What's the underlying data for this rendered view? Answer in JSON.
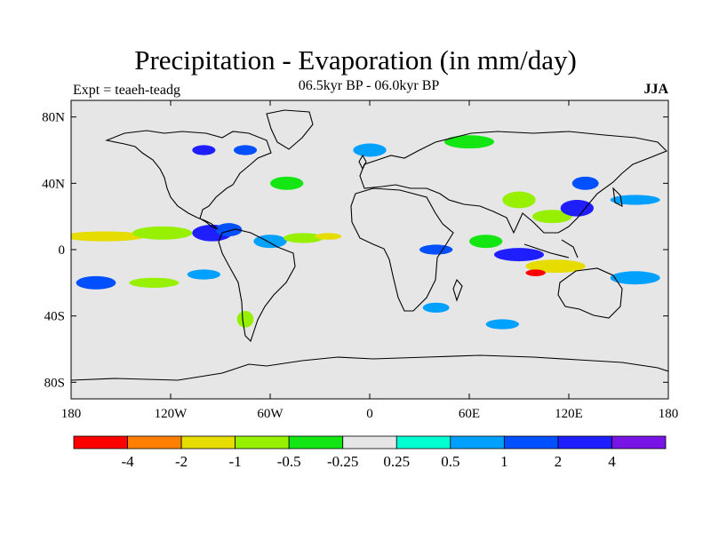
{
  "header": {
    "title": "Precipitation - Evaporation (in mm/day)",
    "subtitle": "06.5kyr BP - 06.0kyr BP",
    "experiment": "Expt = teaeh-teadg",
    "season": "JJA"
  },
  "chart_data": {
    "type": "heatmap",
    "projection": "cylindrical-equidistant",
    "title": "Precipitation - Evaporation (in mm/day)",
    "lon_range": [
      -180,
      180
    ],
    "lat_range": [
      -90,
      90
    ],
    "x_ticks": [
      {
        "lon": -180,
        "label": "180"
      },
      {
        "lon": -120,
        "label": "120W"
      },
      {
        "lon": -60,
        "label": "60W"
      },
      {
        "lon": 0,
        "label": "0"
      },
      {
        "lon": 60,
        "label": "60E"
      },
      {
        "lon": 120,
        "label": "120E"
      },
      {
        "lon": 180,
        "label": "180"
      }
    ],
    "y_ticks": [
      {
        "lat": 80,
        "label": "80N"
      },
      {
        "lat": 40,
        "label": "40N"
      },
      {
        "lat": 0,
        "label": "0"
      },
      {
        "lat": -40,
        "label": "40S"
      },
      {
        "lat": -80,
        "label": "80S"
      }
    ],
    "colorbar": {
      "bins": [
        {
          "color": "#ff0000"
        },
        {
          "color": "#ff8000"
        },
        {
          "color": "#e6dc00"
        },
        {
          "color": "#96f000"
        },
        {
          "color": "#14e614"
        },
        {
          "color": "#e6e6e6"
        },
        {
          "color": "#00ffd2"
        },
        {
          "color": "#00a0ff"
        },
        {
          "color": "#0050ff"
        },
        {
          "color": "#1e1eff"
        },
        {
          "color": "#7814e6"
        }
      ],
      "labels": [
        "-4",
        "-2",
        "-1",
        "-0.5",
        "-0.25",
        "0.25",
        "0.5",
        "1",
        "2",
        "4"
      ]
    },
    "anomaly_regions": [
      {
        "lon": -160,
        "lat": 8,
        "rx": 25,
        "ry": 3,
        "bin": 2
      },
      {
        "lon": -125,
        "lat": 10,
        "rx": 18,
        "ry": 4,
        "bin": 3
      },
      {
        "lon": -95,
        "lat": 10,
        "rx": 12,
        "ry": 5,
        "bin": 9
      },
      {
        "lon": -85,
        "lat": 12,
        "rx": 8,
        "ry": 4,
        "bin": 8
      },
      {
        "lon": -60,
        "lat": 5,
        "rx": 10,
        "ry": 4,
        "bin": 7
      },
      {
        "lon": -40,
        "lat": 7,
        "rx": 12,
        "ry": 3,
        "bin": 3
      },
      {
        "lon": -25,
        "lat": 8,
        "rx": 8,
        "ry": 2,
        "bin": 2
      },
      {
        "lon": 40,
        "lat": 0,
        "rx": 10,
        "ry": 3,
        "bin": 8
      },
      {
        "lon": 70,
        "lat": 5,
        "rx": 10,
        "ry": 4,
        "bin": 4
      },
      {
        "lon": 90,
        "lat": -3,
        "rx": 15,
        "ry": 4,
        "bin": 9
      },
      {
        "lon": 112,
        "lat": -10,
        "rx": 18,
        "ry": 4,
        "bin": 2
      },
      {
        "lon": 100,
        "lat": -14,
        "rx": 6,
        "ry": 2,
        "bin": 0
      },
      {
        "lon": 110,
        "lat": 20,
        "rx": 12,
        "ry": 4,
        "bin": 3
      },
      {
        "lon": 125,
        "lat": 25,
        "rx": 10,
        "ry": 5,
        "bin": 9
      },
      {
        "lon": 130,
        "lat": 40,
        "rx": 8,
        "ry": 4,
        "bin": 8
      },
      {
        "lon": 160,
        "lat": 30,
        "rx": 15,
        "ry": 3,
        "bin": 7
      },
      {
        "lon": 160,
        "lat": -17,
        "rx": 15,
        "ry": 4,
        "bin": 7
      },
      {
        "lon": -165,
        "lat": -20,
        "rx": 12,
        "ry": 4,
        "bin": 8
      },
      {
        "lon": -130,
        "lat": -20,
        "rx": 15,
        "ry": 3,
        "bin": 3
      },
      {
        "lon": -100,
        "lat": -15,
        "rx": 10,
        "ry": 3,
        "bin": 7
      },
      {
        "lon": -75,
        "lat": -42,
        "rx": 5,
        "ry": 5,
        "bin": 3
      },
      {
        "lon": -100,
        "lat": 60,
        "rx": 7,
        "ry": 3,
        "bin": 9
      },
      {
        "lon": -75,
        "lat": 60,
        "rx": 7,
        "ry": 3,
        "bin": 8
      },
      {
        "lon": -50,
        "lat": 40,
        "rx": 10,
        "ry": 4,
        "bin": 4
      },
      {
        "lon": 0,
        "lat": 60,
        "rx": 10,
        "ry": 4,
        "bin": 7
      },
      {
        "lon": 60,
        "lat": 65,
        "rx": 15,
        "ry": 4,
        "bin": 4
      },
      {
        "lon": 90,
        "lat": 30,
        "rx": 10,
        "ry": 5,
        "bin": 3
      },
      {
        "lon": 80,
        "lat": -45,
        "rx": 10,
        "ry": 3,
        "bin": 7
      },
      {
        "lon": 40,
        "lat": -35,
        "rx": 8,
        "ry": 3,
        "bin": 7
      }
    ]
  }
}
